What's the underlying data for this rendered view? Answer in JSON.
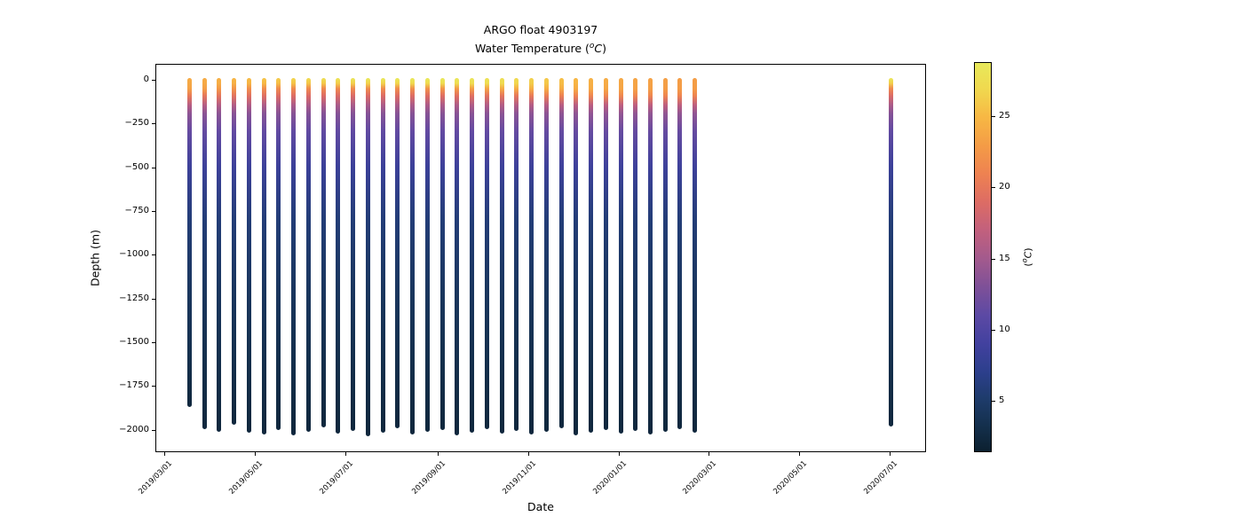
{
  "title": {
    "line1": "ARGO float 4903197",
    "line2": {
      "prefix": "Water Temperature (",
      "sup": "o",
      "unit": "C",
      "suffix": ")"
    }
  },
  "x_axis": {
    "label": "Date",
    "ticks": [
      "2019/03/01",
      "2019/05/01",
      "2019/07/01",
      "2019/09/01",
      "2019/11/01",
      "2020/01/01",
      "2020/03/01",
      "2020/05/01",
      "2020/07/01"
    ]
  },
  "y_axis": {
    "label": "Depth (m)",
    "ticks": [
      {
        "value": 0,
        "label": "0"
      },
      {
        "value": -250,
        "label": "−250"
      },
      {
        "value": -500,
        "label": "−500"
      },
      {
        "value": -750,
        "label": "−750"
      },
      {
        "value": -1000,
        "label": "−1000"
      },
      {
        "value": -1250,
        "label": "−1250"
      },
      {
        "value": -1500,
        "label": "−1500"
      },
      {
        "value": -1750,
        "label": "−1750"
      },
      {
        "value": -2000,
        "label": "−2000"
      }
    ]
  },
  "colorbar": {
    "label": {
      "prefix": "(",
      "sup": "o",
      "unit": "C",
      "suffix": ")"
    },
    "ticks": [
      5,
      10,
      15,
      20,
      25
    ],
    "vmin": 1.4,
    "vmax": 28.8,
    "colormap_name": "thermal",
    "stops": [
      {
        "t": 1.4,
        "c": "#0c2030"
      },
      {
        "t": 3.0,
        "c": "#132e49"
      },
      {
        "t": 5.0,
        "c": "#1d3b69"
      },
      {
        "t": 7.0,
        "c": "#2c3f8c"
      },
      {
        "t": 9.0,
        "c": "#42419f"
      },
      {
        "t": 11.0,
        "c": "#5c49a4"
      },
      {
        "t": 13.0,
        "c": "#7e5098"
      },
      {
        "t": 15.0,
        "c": "#a35a8d"
      },
      {
        "t": 17.0,
        "c": "#c2607d"
      },
      {
        "t": 19.0,
        "c": "#dd6c64"
      },
      {
        "t": 21.0,
        "c": "#ee8251"
      },
      {
        "t": 23.0,
        "c": "#f49c46"
      },
      {
        "t": 25.0,
        "c": "#f7b844"
      },
      {
        "t": 27.0,
        "c": "#f0d94f"
      },
      {
        "t": 28.8,
        "c": "#e8e95a"
      }
    ]
  },
  "chart_data": {
    "type": "scatter",
    "title": "ARGO float 4903197 — Water Temperature (°C)",
    "xlabel": "Date",
    "ylabel": "Depth (m)",
    "x_range": [
      "2019/03/01",
      "2020/07/01"
    ],
    "ylim": [
      -2130,
      95
    ],
    "grid": false,
    "depth_grid": [
      0,
      -30,
      -60,
      -100,
      -150,
      -200,
      -300,
      -500,
      -800,
      -1200,
      -1600,
      -2000
    ],
    "profiles": [
      {
        "date": "2019/03/18",
        "max_depth": -1860,
        "temps": [
          24.0,
          23.9,
          23.4,
          20.3,
          16.4,
          13.8,
          11.5,
          8.5,
          5.8,
          4.3,
          3.2,
          2.2
        ]
      },
      {
        "date": "2019/03/28",
        "max_depth": -1985,
        "temps": [
          24.1,
          24.0,
          23.2,
          20.0,
          16.3,
          13.7,
          11.5,
          8.5,
          5.8,
          4.3,
          3.2,
          2.2
        ]
      },
      {
        "date": "2019/04/07",
        "max_depth": -2000,
        "temps": [
          24.4,
          24.2,
          22.8,
          19.8,
          16.2,
          13.7,
          11.4,
          8.5,
          5.8,
          4.3,
          3.2,
          2.2
        ]
      },
      {
        "date": "2019/04/17",
        "max_depth": -1960,
        "temps": [
          24.8,
          24.5,
          22.4,
          19.6,
          16.1,
          13.6,
          11.4,
          8.5,
          5.8,
          4.3,
          3.2,
          2.2
        ]
      },
      {
        "date": "2019/04/27",
        "max_depth": -2005,
        "temps": [
          25.2,
          24.8,
          22.0,
          19.4,
          16.0,
          13.6,
          11.4,
          8.5,
          5.8,
          4.3,
          3.2,
          2.2
        ]
      },
      {
        "date": "2019/05/07",
        "max_depth": -2015,
        "temps": [
          25.7,
          25.0,
          21.8,
          19.2,
          15.9,
          13.5,
          11.4,
          8.5,
          5.8,
          4.3,
          3.2,
          2.2
        ]
      },
      {
        "date": "2019/05/17",
        "max_depth": -1990,
        "temps": [
          26.2,
          25.3,
          21.7,
          19.1,
          15.8,
          13.5,
          11.3,
          8.4,
          5.8,
          4.3,
          3.2,
          2.2
        ]
      },
      {
        "date": "2019/05/27",
        "max_depth": -2020,
        "temps": [
          26.8,
          25.6,
          21.6,
          19.0,
          15.8,
          13.5,
          11.3,
          8.4,
          5.8,
          4.3,
          3.2,
          2.2
        ]
      },
      {
        "date": "2019/06/06",
        "max_depth": -2000,
        "temps": [
          27.3,
          25.8,
          21.6,
          18.9,
          15.7,
          13.4,
          11.3,
          8.4,
          5.8,
          4.3,
          3.2,
          2.2
        ]
      },
      {
        "date": "2019/06/16",
        "max_depth": -1975,
        "temps": [
          27.8,
          26.0,
          21.5,
          18.9,
          15.7,
          13.4,
          11.3,
          8.4,
          5.8,
          4.3,
          3.2,
          2.2
        ]
      },
      {
        "date": "2019/06/26",
        "max_depth": -2010,
        "temps": [
          28.2,
          26.2,
          21.5,
          18.8,
          15.6,
          13.4,
          11.3,
          8.4,
          5.8,
          4.3,
          3.2,
          2.2
        ]
      },
      {
        "date": "2019/07/06",
        "max_depth": -1995,
        "temps": [
          28.5,
          26.4,
          21.6,
          18.8,
          15.6,
          13.4,
          11.3,
          8.4,
          5.8,
          4.3,
          3.2,
          2.2
        ]
      },
      {
        "date": "2019/07/16",
        "max_depth": -2025,
        "temps": [
          28.7,
          26.5,
          21.7,
          18.9,
          15.6,
          13.4,
          11.3,
          8.4,
          5.8,
          4.3,
          3.2,
          2.2
        ]
      },
      {
        "date": "2019/07/26",
        "max_depth": -2005,
        "temps": [
          28.8,
          26.6,
          21.8,
          18.9,
          15.7,
          13.5,
          11.3,
          8.4,
          5.8,
          4.3,
          3.2,
          2.2
        ]
      },
      {
        "date": "2019/08/05",
        "max_depth": -1980,
        "temps": [
          28.9,
          26.8,
          21.9,
          19.0,
          15.7,
          13.5,
          11.3,
          8.4,
          5.8,
          4.3,
          3.2,
          2.2
        ]
      },
      {
        "date": "2019/08/15",
        "max_depth": -2015,
        "temps": [
          29.0,
          27.0,
          22.0,
          19.0,
          15.7,
          13.5,
          11.4,
          8.4,
          5.8,
          4.3,
          3.2,
          2.2
        ]
      },
      {
        "date": "2019/08/25",
        "max_depth": -2000,
        "temps": [
          28.9,
          27.2,
          22.2,
          19.1,
          15.8,
          13.5,
          11.4,
          8.4,
          5.8,
          4.3,
          3.2,
          2.2
        ]
      },
      {
        "date": "2019/09/04",
        "max_depth": -1990,
        "temps": [
          28.8,
          27.4,
          22.5,
          19.2,
          15.8,
          13.5,
          11.4,
          8.5,
          5.8,
          4.3,
          3.2,
          2.2
        ]
      },
      {
        "date": "2019/09/14",
        "max_depth": -2020,
        "temps": [
          28.6,
          27.5,
          22.8,
          19.3,
          15.9,
          13.6,
          11.4,
          8.5,
          5.8,
          4.3,
          3.2,
          2.2
        ]
      },
      {
        "date": "2019/09/24",
        "max_depth": -2005,
        "temps": [
          28.4,
          27.5,
          23.2,
          19.4,
          15.9,
          13.6,
          11.4,
          8.5,
          5.8,
          4.3,
          3.2,
          2.2
        ]
      },
      {
        "date": "2019/10/04",
        "max_depth": -1985,
        "temps": [
          28.0,
          27.4,
          23.6,
          19.6,
          16.0,
          13.6,
          11.4,
          8.5,
          5.8,
          4.3,
          3.2,
          2.2
        ]
      },
      {
        "date": "2019/10/14",
        "max_depth": -2010,
        "temps": [
          27.6,
          27.2,
          24.0,
          19.8,
          16.1,
          13.7,
          11.5,
          8.5,
          5.8,
          4.3,
          3.2,
          2.2
        ]
      },
      {
        "date": "2019/10/24",
        "max_depth": -1995,
        "temps": [
          27.1,
          26.8,
          24.2,
          20.0,
          16.2,
          13.7,
          11.5,
          8.5,
          5.8,
          4.3,
          3.2,
          2.2
        ]
      },
      {
        "date": "2019/11/03",
        "max_depth": -2015,
        "temps": [
          26.5,
          26.3,
          24.3,
          20.3,
          16.3,
          13.8,
          11.5,
          8.5,
          5.8,
          4.3,
          3.2,
          2.2
        ]
      },
      {
        "date": "2019/11/13",
        "max_depth": -2000,
        "temps": [
          26.0,
          25.9,
          24.3,
          20.6,
          16.4,
          13.8,
          11.5,
          8.5,
          5.8,
          4.3,
          3.2,
          2.2
        ]
      },
      {
        "date": "2019/11/23",
        "max_depth": -1980,
        "temps": [
          25.4,
          25.3,
          24.2,
          20.8,
          16.5,
          13.9,
          11.5,
          8.6,
          5.8,
          4.3,
          3.2,
          2.2
        ]
      },
      {
        "date": "2019/12/03",
        "max_depth": -2020,
        "temps": [
          24.9,
          24.8,
          24.1,
          21.0,
          16.6,
          13.9,
          11.6,
          8.6,
          5.8,
          4.3,
          3.2,
          2.2
        ]
      },
      {
        "date": "2019/12/13",
        "max_depth": -2005,
        "temps": [
          24.5,
          24.4,
          24.0,
          21.2,
          16.7,
          14.0,
          11.6,
          8.6,
          5.8,
          4.3,
          3.2,
          2.2
        ]
      },
      {
        "date": "2019/12/23",
        "max_depth": -1990,
        "temps": [
          24.2,
          24.1,
          23.8,
          21.3,
          16.8,
          14.0,
          11.6,
          8.6,
          5.8,
          4.3,
          3.2,
          2.2
        ]
      },
      {
        "date": "2020/01/02",
        "max_depth": -2010,
        "temps": [
          23.9,
          23.8,
          23.6,
          21.4,
          16.9,
          14.1,
          11.6,
          8.6,
          5.8,
          4.3,
          3.2,
          2.2
        ]
      },
      {
        "date": "2020/01/12",
        "max_depth": -1995,
        "temps": [
          23.6,
          23.6,
          23.4,
          21.4,
          17.0,
          14.1,
          11.6,
          8.6,
          5.8,
          4.3,
          3.2,
          2.2
        ]
      },
      {
        "date": "2020/01/22",
        "max_depth": -2015,
        "temps": [
          23.4,
          23.4,
          23.2,
          21.3,
          17.0,
          14.1,
          11.6,
          8.6,
          5.8,
          4.3,
          3.2,
          2.2
        ]
      },
      {
        "date": "2020/02/01",
        "max_depth": -2000,
        "temps": [
          23.2,
          23.2,
          23.1,
          21.2,
          17.0,
          14.1,
          11.6,
          8.6,
          5.8,
          4.3,
          3.2,
          2.2
        ]
      },
      {
        "date": "2020/02/11",
        "max_depth": -1985,
        "temps": [
          23.1,
          23.1,
          23.0,
          21.2,
          16.9,
          14.1,
          11.6,
          8.6,
          5.8,
          4.3,
          3.2,
          2.2
        ]
      },
      {
        "date": "2020/02/21",
        "max_depth": -2005,
        "temps": [
          23.1,
          23.1,
          23.0,
          21.1,
          16.9,
          14.0,
          11.6,
          8.6,
          5.8,
          4.3,
          3.2,
          2.2
        ]
      },
      {
        "date": "2020/07/02",
        "max_depth": -1968,
        "temps": [
          28.6,
          26.4,
          21.6,
          18.8,
          15.6,
          13.4,
          11.3,
          8.4,
          5.8,
          4.3,
          3.2,
          2.2
        ]
      }
    ]
  }
}
